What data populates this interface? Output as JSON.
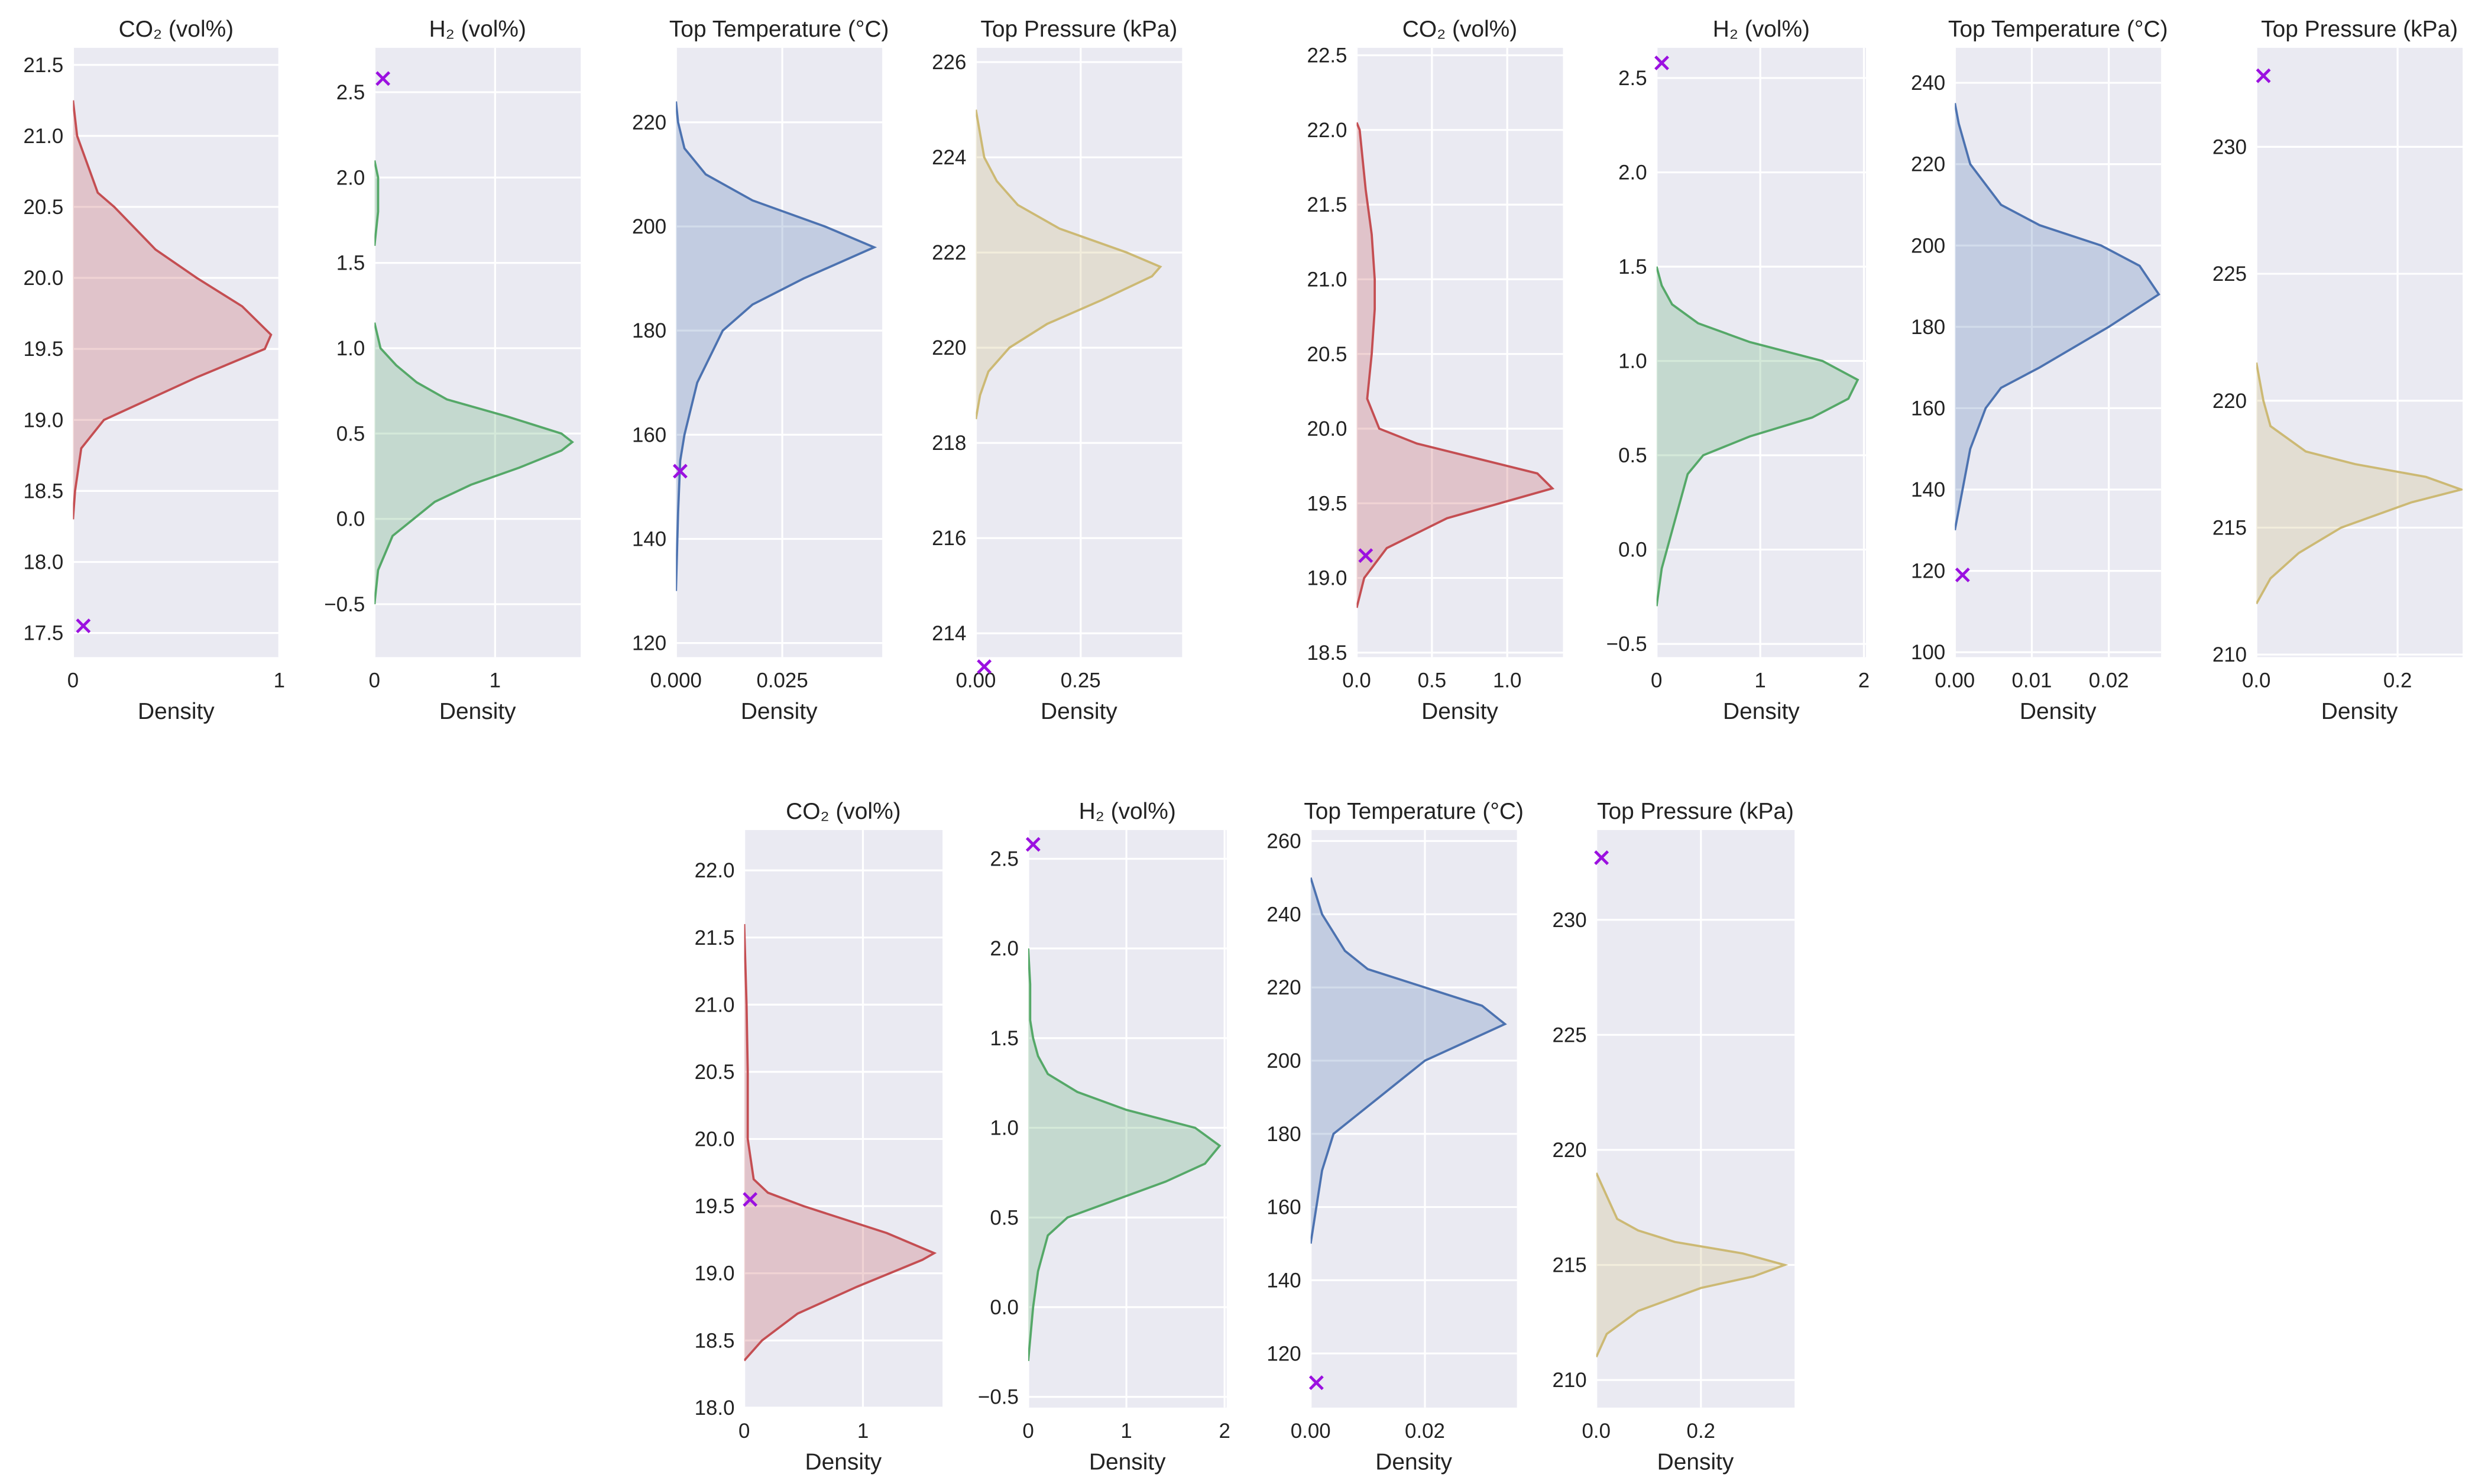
{
  "chart_data": [
    {
      "type": "density",
      "title": "CO₂ (vol%)",
      "x_label": "Density",
      "grid": true,
      "xlim": [
        0,
        1
      ],
      "xticks": [
        0,
        1
      ],
      "ylim": [
        17.33,
        21.62
      ],
      "yticks": [
        17.5,
        {
          "value": 18,
          "label": "18.0"
        },
        18.5,
        {
          "value": 19,
          "label": "19.0"
        },
        19.5,
        {
          "value": 20,
          "label": "20.0"
        },
        20.5,
        {
          "value": 21,
          "label": "21.0"
        },
        21.5
      ],
      "series": [
        {
          "color": "#c44e52",
          "y": [
            18.3,
            18.5,
            18.8,
            19.0,
            19.1,
            19.3,
            19.5,
            19.6,
            19.8,
            20.0,
            20.2,
            20.5,
            20.6,
            21.0,
            21.25
          ],
          "values": [
            0,
            0.01,
            0.04,
            0.15,
            0.3,
            0.6,
            0.93,
            0.96,
            0.82,
            0.6,
            0.4,
            0.2,
            0.12,
            0.02,
            0
          ]
        }
      ],
      "marker": {
        "x": 0.05,
        "y": 17.55,
        "color": "#9b10e0"
      }
    },
    {
      "type": "density",
      "title": "H₂ (vol%)",
      "x_label": "Density",
      "grid": true,
      "xlim": [
        0,
        1.71
      ],
      "xticks": [
        0,
        1
      ],
      "ylim": [
        -0.81,
        2.76
      ],
      "yticks": [
        {
          "value": -0.5,
          "label": "−0.5"
        },
        {
          "value": 0,
          "label": "0.0"
        },
        0.5,
        {
          "value": 1,
          "label": "1.0"
        },
        1.5,
        {
          "value": 2,
          "label": "2.0"
        },
        2.5
      ],
      "series": [
        {
          "color": "#55a868",
          "y": [
            -0.5,
            -0.3,
            -0.1,
            0.1,
            0.2,
            0.3,
            0.4,
            0.45,
            0.5,
            0.6,
            0.7,
            0.8,
            0.9,
            1.0,
            1.15,
            1.4,
            1.6,
            1.8,
            2.0,
            2.1
          ],
          "values": [
            0,
            0.03,
            0.15,
            0.5,
            0.8,
            1.2,
            1.55,
            1.64,
            1.55,
            1.1,
            0.6,
            0.35,
            0.18,
            0.05,
            0,
            null,
            0,
            0.03,
            0.03,
            0
          ]
        }
      ],
      "marker": {
        "x": 0.07,
        "y": 2.58,
        "color": "#9b10e0"
      }
    },
    {
      "type": "density",
      "title": "Top Temperature (°C)",
      "x_label": "Density",
      "grid": true,
      "xlim": [
        0,
        0.0485
      ],
      "xticks": [
        {
          "value": 0,
          "label": "0.000"
        },
        0.025
      ],
      "ylim": [
        117.3,
        234.3
      ],
      "yticks": [
        120,
        140,
        160,
        180,
        200,
        220
      ],
      "series": [
        {
          "color": "#4c72b0",
          "y": [
            130,
            145,
            155,
            160,
            170,
            180,
            185,
            190,
            196,
            200,
            205,
            210,
            215,
            220,
            224
          ],
          "values": [
            0,
            0.0005,
            0.001,
            0.002,
            0.005,
            0.011,
            0.018,
            0.03,
            0.0466,
            0.035,
            0.018,
            0.007,
            0.002,
            0.0005,
            0
          ]
        }
      ],
      "marker": {
        "x": 0.001,
        "y": 153,
        "color": "#9b10e0"
      }
    },
    {
      "type": "density",
      "title": "Top Pressure (kPa)",
      "x_label": "Density",
      "grid": true,
      "xlim": [
        0,
        0.492
      ],
      "xticks": [
        {
          "value": 0,
          "label": "0.00"
        },
        0.25
      ],
      "ylim": [
        213.5,
        226.3
      ],
      "yticks": [
        214,
        216,
        218,
        220,
        222,
        224,
        226
      ],
      "series": [
        {
          "color": "#ccb974",
          "y": [
            218.5,
            219,
            219.5,
            220,
            220.5,
            221,
            221.5,
            221.7,
            222,
            222.5,
            223,
            223.5,
            224,
            225
          ],
          "values": [
            0,
            0.01,
            0.03,
            0.08,
            0.17,
            0.3,
            0.42,
            0.44,
            0.36,
            0.2,
            0.1,
            0.05,
            0.02,
            0
          ]
        }
      ],
      "marker": {
        "x": 0.02,
        "y": 213.3,
        "color": "#9b10e0"
      }
    },
    {
      "type": "density",
      "title": "CO₂ (vol%)",
      "x_label": "Density",
      "grid": true,
      "xlim": [
        0,
        1.37
      ],
      "xticks": [
        {
          "value": 0,
          "label": "0.0"
        },
        0.5,
        {
          "value": 1,
          "label": "1.0"
        }
      ],
      "ylim": [
        18.47,
        22.55
      ],
      "yticks": [
        18.5,
        {
          "value": 19,
          "label": "19.0"
        },
        19.5,
        {
          "value": 20,
          "label": "20.0"
        },
        20.5,
        {
          "value": 21,
          "label": "21.0"
        },
        21.5,
        {
          "value": 22,
          "label": "22.0"
        },
        22.5
      ],
      "series": [
        {
          "color": "#c44e52",
          "y": [
            18.8,
            19.0,
            19.2,
            19.4,
            19.5,
            19.6,
            19.7,
            19.8,
            19.9,
            20.0,
            20.2,
            20.5,
            20.8,
            21.0,
            21.3,
            21.6,
            22.0,
            22.05
          ],
          "values": [
            0,
            0.05,
            0.2,
            0.6,
            0.95,
            1.3,
            1.2,
            0.8,
            0.4,
            0.15,
            0.07,
            0.1,
            0.12,
            0.12,
            0.1,
            0.06,
            0.02,
            0
          ]
        }
      ],
      "marker": {
        "x": 0.06,
        "y": 19.15,
        "color": "#9b10e0"
      }
    },
    {
      "type": "density",
      "title": "H₂ (vol%)",
      "x_label": "Density",
      "grid": true,
      "xlim": [
        0,
        2.02
      ],
      "xticks": [
        0,
        1,
        2
      ],
      "ylim": [
        -0.57,
        2.66
      ],
      "yticks": [
        {
          "value": -0.5,
          "label": "−0.5"
        },
        {
          "value": 0,
          "label": "0.0"
        },
        0.5,
        {
          "value": 1,
          "label": "1.0"
        },
        1.5,
        {
          "value": 2,
          "label": "2.0"
        },
        2.5
      ],
      "series": [
        {
          "color": "#55a868",
          "y": [
            -0.3,
            -0.1,
            0.0,
            0.2,
            0.4,
            0.5,
            0.6,
            0.7,
            0.8,
            0.9,
            1.0,
            1.1,
            1.2,
            1.3,
            1.4,
            1.5
          ],
          "values": [
            0,
            0.05,
            0.1,
            0.2,
            0.3,
            0.45,
            0.9,
            1.5,
            1.85,
            1.94,
            1.6,
            0.9,
            0.4,
            0.15,
            0.05,
            0
          ]
        }
      ],
      "marker": {
        "x": 0.05,
        "y": 2.58,
        "color": "#9b10e0"
      }
    },
    {
      "type": "density",
      "title": "Top Temperature (°C)",
      "x_label": "Density",
      "grid": true,
      "xlim": [
        0,
        0.0268
      ],
      "xticks": [
        {
          "value": 0,
          "label": "0.00"
        },
        0.01,
        0.02
      ],
      "ylim": [
        98.8,
        248.6
      ],
      "yticks": [
        100,
        120,
        140,
        160,
        180,
        200,
        220,
        240
      ],
      "series": [
        {
          "color": "#4c72b0",
          "y": [
            130,
            135,
            140,
            150,
            160,
            165,
            170,
            180,
            188,
            195,
            200,
            205,
            210,
            220,
            230,
            235
          ],
          "values": [
            0,
            0.0005,
            0.001,
            0.002,
            0.004,
            0.006,
            0.011,
            0.02,
            0.0265,
            0.024,
            0.019,
            0.011,
            0.006,
            0.002,
            0.0005,
            0
          ]
        }
      ],
      "marker": {
        "x": 0.001,
        "y": 119,
        "color": "#9b10e0"
      }
    },
    {
      "type": "density",
      "title": "Top Pressure (kPa)",
      "x_label": "Density",
      "grid": true,
      "xlim": [
        0,
        0.292
      ],
      "xticks": [
        {
          "value": 0,
          "label": "0.0"
        },
        0.2
      ],
      "ylim": [
        209.9,
        233.9
      ],
      "yticks": [
        210,
        215,
        220,
        225,
        230
      ],
      "series": [
        {
          "color": "#ccb974",
          "y": [
            212,
            213,
            214,
            215,
            216,
            216.5,
            217,
            217.5,
            218,
            219,
            220,
            221.5
          ],
          "values": [
            0,
            0.02,
            0.06,
            0.12,
            0.22,
            0.29,
            0.24,
            0.14,
            0.07,
            0.02,
            0.01,
            0
          ]
        }
      ],
      "marker": {
        "x": 0.01,
        "y": 232.8,
        "color": "#9b10e0"
      }
    },
    {
      "type": "density",
      "title": "CO₂ (vol%)",
      "x_label": "Density",
      "grid": true,
      "xlim": [
        0,
        1.67
      ],
      "xticks": [
        0,
        1
      ],
      "ylim": [
        18.0,
        22.3
      ],
      "yticks": [
        {
          "value": 18,
          "label": "18.0"
        },
        18.5,
        {
          "value": 19,
          "label": "19.0"
        },
        19.5,
        {
          "value": 20,
          "label": "20.0"
        },
        20.5,
        {
          "value": 21,
          "label": "21.0"
        },
        21.5,
        {
          "value": 22,
          "label": "22.0"
        }
      ],
      "series": [
        {
          "color": "#c44e52",
          "y": [
            18.35,
            18.5,
            18.7,
            18.9,
            19.1,
            19.15,
            19.3,
            19.5,
            19.6,
            19.7,
            20.0,
            20.5,
            21.0,
            21.6
          ],
          "values": [
            0,
            0.15,
            0.45,
            0.95,
            1.5,
            1.6,
            1.2,
            0.5,
            0.2,
            0.08,
            0.03,
            0.03,
            0.02,
            0
          ]
        }
      ],
      "marker": {
        "x": 0.05,
        "y": 19.55,
        "color": "#9b10e0"
      }
    },
    {
      "type": "density",
      "title": "H₂ (vol%)",
      "x_label": "Density",
      "grid": true,
      "xlim": [
        0,
        2.02
      ],
      "xticks": [
        0,
        1,
        2
      ],
      "ylim": [
        -0.56,
        2.66
      ],
      "yticks": [
        {
          "value": -0.5,
          "label": "−0.5"
        },
        {
          "value": 0,
          "label": "0.0"
        },
        0.5,
        {
          "value": 1,
          "label": "1.0"
        },
        1.5,
        {
          "value": 2,
          "label": "2.0"
        },
        2.5
      ],
      "series": [
        {
          "color": "#55a868",
          "y": [
            -0.3,
            0.0,
            0.2,
            0.4,
            0.5,
            0.6,
            0.7,
            0.8,
            0.9,
            1.0,
            1.1,
            1.2,
            1.3,
            1.4,
            1.5,
            1.6,
            1.8,
            2.0
          ],
          "values": [
            0,
            0.05,
            0.1,
            0.2,
            0.4,
            0.9,
            1.4,
            1.8,
            1.95,
            1.7,
            1.0,
            0.5,
            0.2,
            0.1,
            0.05,
            0.02,
            0.02,
            0
          ]
        }
      ],
      "marker": {
        "x": 0.05,
        "y": 2.58,
        "color": "#9b10e0"
      }
    },
    {
      "type": "density",
      "title": "Top Temperature (°C)",
      "x_label": "Density",
      "grid": true,
      "xlim": [
        0,
        0.0361
      ],
      "xticks": [
        {
          "value": 0,
          "label": "0.00"
        },
        0.02
      ],
      "ylim": [
        105.2,
        263
      ],
      "yticks": [
        120,
        140,
        160,
        180,
        200,
        220,
        240,
        260
      ],
      "series": [
        {
          "color": "#4c72b0",
          "y": [
            150,
            160,
            170,
            180,
            185,
            190,
            195,
            200,
            205,
            210,
            215,
            220,
            225,
            230,
            240,
            250
          ],
          "values": [
            0,
            0.001,
            0.002,
            0.004,
            0.008,
            0.012,
            0.016,
            0.02,
            0.027,
            0.034,
            0.03,
            0.02,
            0.01,
            0.006,
            0.002,
            0
          ]
        }
      ],
      "marker": {
        "x": 0.001,
        "y": 112,
        "color": "#9b10e0"
      }
    },
    {
      "type": "density",
      "title": "Top Pressure (kPa)",
      "x_label": "Density",
      "grid": true,
      "xlim": [
        0,
        0.379
      ],
      "xticks": [
        {
          "value": 0,
          "label": "0.0"
        },
        0.2
      ],
      "ylim": [
        208.8,
        233.9
      ],
      "yticks": [
        210,
        215,
        220,
        225,
        230
      ],
      "series": [
        {
          "color": "#ccb974",
          "y": [
            211,
            212,
            213,
            214,
            214.5,
            215,
            215.5,
            216,
            216.5,
            217,
            218,
            219
          ],
          "values": [
            0,
            0.02,
            0.08,
            0.2,
            0.3,
            0.36,
            0.28,
            0.15,
            0.08,
            0.04,
            0.02,
            0
          ]
        }
      ],
      "marker": {
        "x": 0.01,
        "y": 232.7,
        "color": "#9b10e0"
      }
    }
  ]
}
